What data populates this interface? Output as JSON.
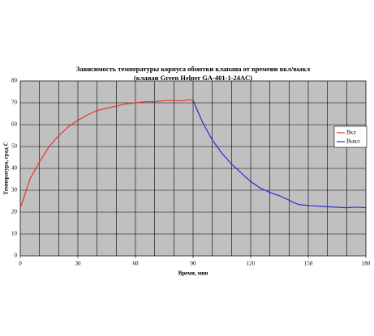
{
  "chart_data": {
    "type": "line",
    "title": "Зависимость температуры корпуса обмотки клапана от времени вкл/выкл",
    "subtitle": "(клапан Green Helper GA-401-1-24AC)",
    "x_label": "Время, мин",
    "y_label": "Температура, град С",
    "xlim": [
      0,
      180
    ],
    "xticks": [
      0,
      30,
      60,
      90,
      120,
      150,
      180
    ],
    "x_gridlines": [
      0,
      10,
      20,
      30,
      40,
      50,
      60,
      70,
      80,
      90,
      100,
      110,
      120,
      130,
      140,
      150,
      160,
      170,
      180
    ],
    "ylim": [
      0,
      80
    ],
    "yticks": [
      0,
      10,
      20,
      30,
      40,
      50,
      60,
      70,
      80
    ],
    "grid": true,
    "plot_background": "#c0c0c0",
    "legend": "right",
    "series": [
      {
        "name": "Вкл",
        "color": "#e8322c",
        "x": [
          0,
          2,
          5,
          10,
          15,
          20,
          25,
          30,
          35,
          40,
          45,
          50,
          55,
          60,
          65,
          70,
          75,
          80,
          85,
          88,
          90
        ],
        "values": [
          22,
          27,
          35,
          43,
          50,
          55,
          59,
          62,
          64.5,
          66.5,
          67.5,
          68.5,
          69.5,
          70,
          70.5,
          70.5,
          71,
          71,
          71,
          71.5,
          71
        ]
      },
      {
        "name": "Выкл",
        "color": "#2a2ad8",
        "x": [
          90,
          92,
          95,
          100,
          105,
          110,
          115,
          120,
          125,
          130,
          135,
          140,
          142,
          145,
          150,
          160,
          170,
          175,
          180
        ],
        "values": [
          71,
          67,
          61,
          53,
          47,
          42,
          38,
          34,
          31,
          29,
          27.5,
          25.5,
          24.5,
          23.5,
          23,
          22.5,
          22,
          22.3,
          22
        ]
      }
    ]
  }
}
